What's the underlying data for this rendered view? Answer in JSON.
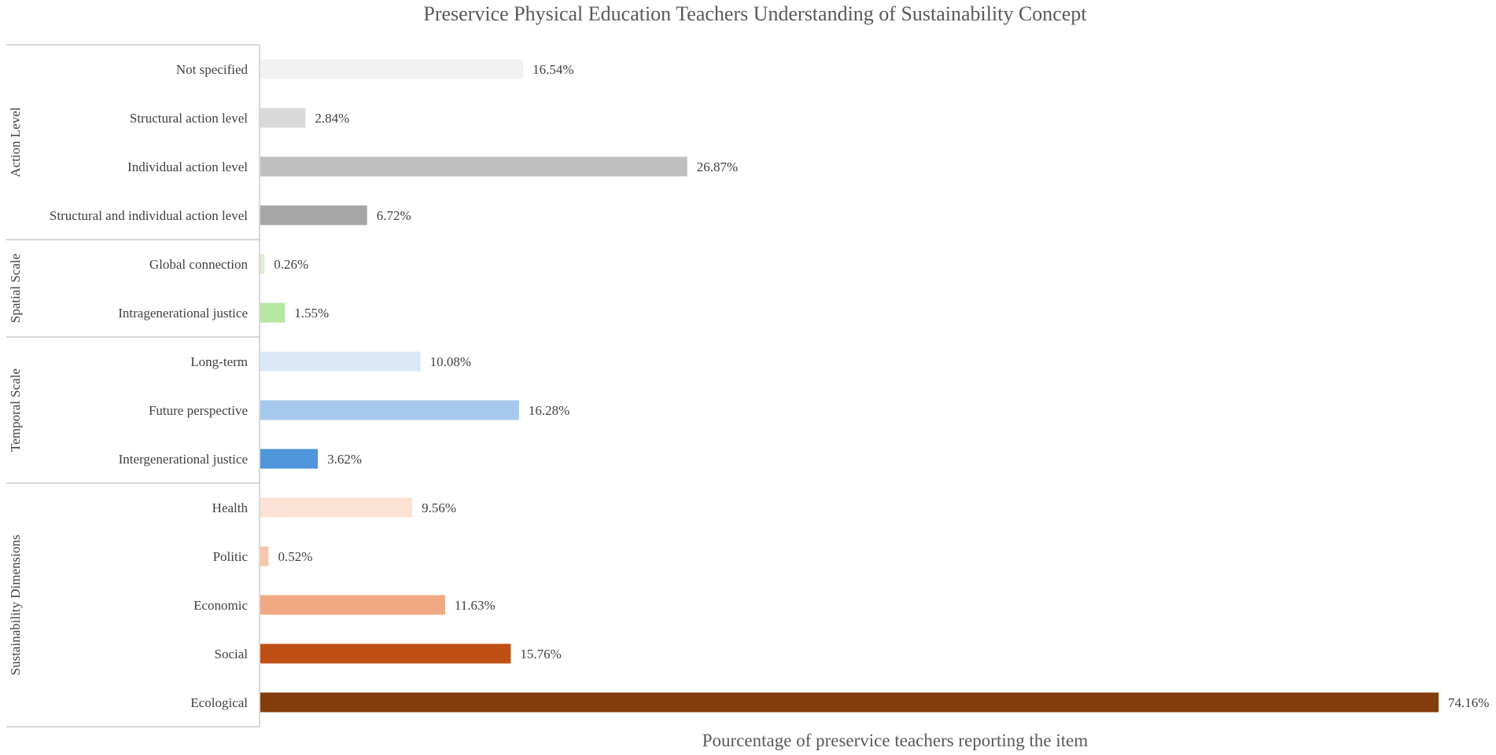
{
  "chart_data": {
    "type": "bar",
    "orientation": "horizontal",
    "title": "Preservice Physical Education Teachers Understanding of Sustainability Concept",
    "xlabel": "Pourcentage of preservice teachers reporting the item",
    "ylabel": "",
    "xlim": [
      0,
      74.16
    ],
    "grid": false,
    "legend": "none",
    "value_suffix": "%",
    "groups": [
      {
        "name": "Action Level",
        "items": [
          {
            "category": "Not specified",
            "value": 16.54,
            "color": "#f2f2f2"
          },
          {
            "category": "Structural action level",
            "value": 2.84,
            "color": "#d9d9d9"
          },
          {
            "category": "Individual action level",
            "value": 26.87,
            "color": "#bfbfbf"
          },
          {
            "category": "Structural and individual action level",
            "value": 6.72,
            "color": "#a6a6a6"
          }
        ]
      },
      {
        "name": "Spatial Scale",
        "items": [
          {
            "category": "Global connection",
            "value": 0.26,
            "color": "#d9f2d0"
          },
          {
            "category": "Intragenerational justice",
            "value": 1.55,
            "color": "#b5e6a2"
          }
        ]
      },
      {
        "name": "Temporal Scale",
        "items": [
          {
            "category": "Long-term",
            "value": 10.08,
            "color": "#dae8f8"
          },
          {
            "category": "Future perspective",
            "value": 16.28,
            "color": "#a6c8ec"
          },
          {
            "category": "Intergenerational justice",
            "value": 3.62,
            "color": "#4e95d9"
          }
        ]
      },
      {
        "name": "Sustainability Dimensions",
        "items": [
          {
            "category": "Health",
            "value": 9.56,
            "color": "#fbe2d5"
          },
          {
            "category": "Politic",
            "value": 0.52,
            "color": "#f7c7ac"
          },
          {
            "category": "Economic",
            "value": 11.63,
            "color": "#f1a983"
          },
          {
            "category": "Social",
            "value": 15.76,
            "color": "#c04f15"
          },
          {
            "category": "Ecological",
            "value": 74.16,
            "color": "#843c0c"
          }
        ]
      }
    ]
  }
}
